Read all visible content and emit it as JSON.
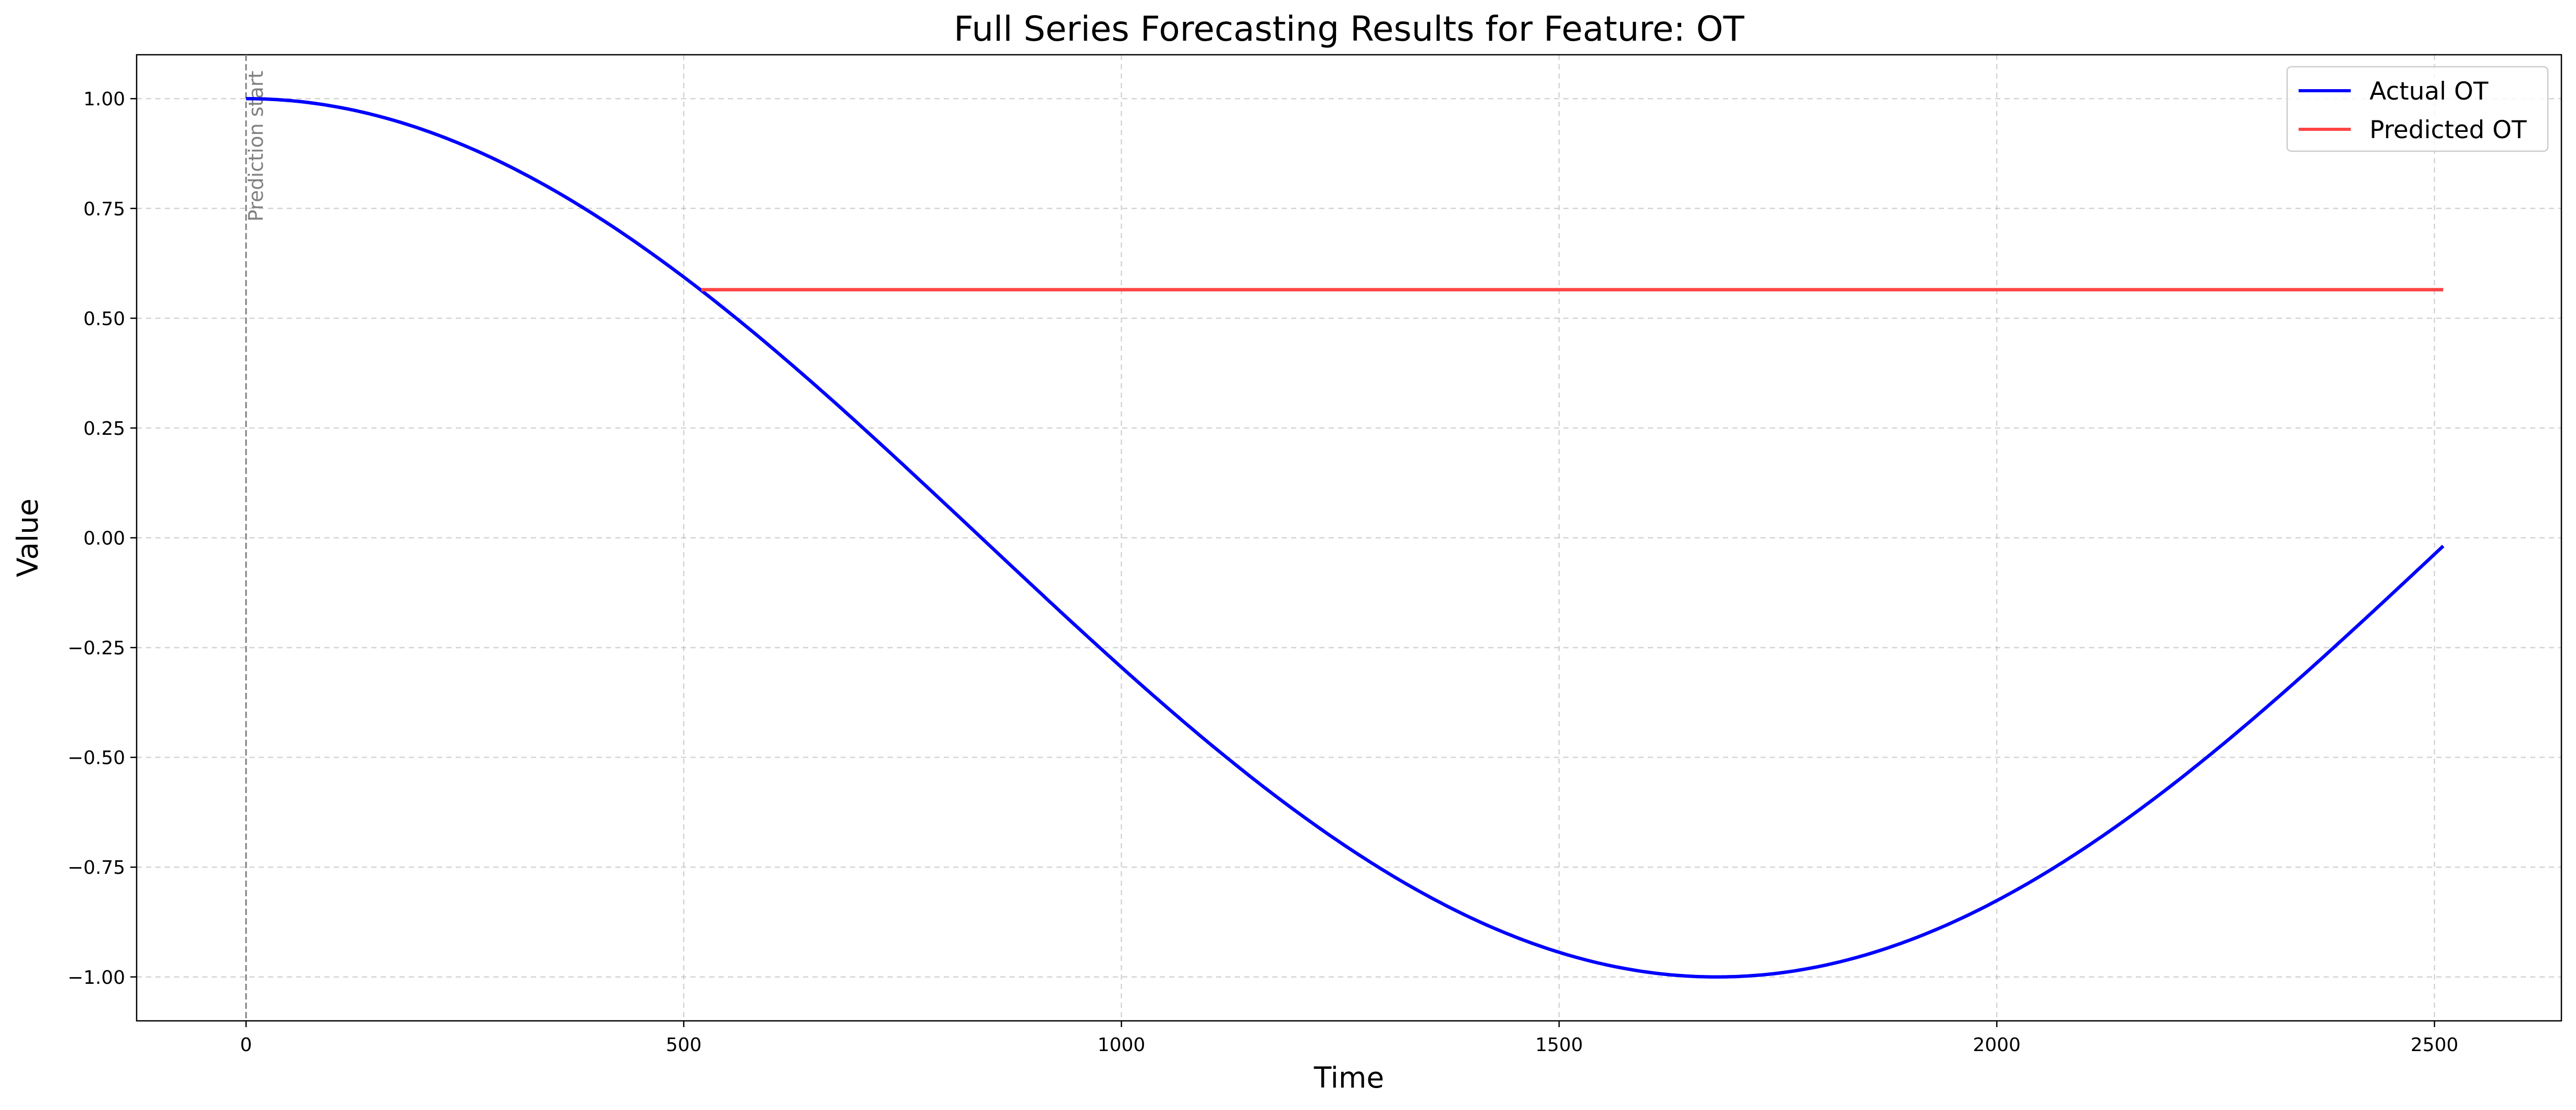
{
  "chart_data": {
    "type": "line",
    "title": "Full Series Forecasting Results for Feature: OT",
    "xlabel": "Time",
    "ylabel": "Value",
    "xlim": [
      -125,
      2645
    ],
    "ylim": [
      -1.1,
      1.1
    ],
    "xticks": [
      0,
      500,
      1000,
      1500,
      2000,
      2500
    ],
    "yticks": [
      -1.0,
      -0.75,
      -0.5,
      -0.25,
      0.0,
      0.25,
      0.5,
      0.75,
      1.0
    ],
    "grid": true,
    "legend_position": "top-right",
    "annotation": {
      "text": "Prediction start",
      "x": 0
    },
    "series": [
      {
        "name": "Actual OT",
        "color": "#0000ff",
        "function": "cosine",
        "x_start": 0,
        "x_end": 2510,
        "period": 3360,
        "amplitude": 1.0,
        "x": [
          0,
          250,
          500,
          750,
          1000,
          1250,
          1500,
          1680,
          1750,
          2000,
          2250,
          2510
        ],
        "y": [
          1.0,
          0.891,
          0.588,
          0.138,
          -0.308,
          -0.7,
          -0.945,
          -1.0,
          -0.991,
          -0.818,
          -0.464,
          0.0
        ]
      },
      {
        "name": "Predicted OT",
        "color": "#ff4444",
        "x": [
          520,
          2510
        ],
        "y": [
          0.565,
          0.565
        ]
      }
    ]
  }
}
